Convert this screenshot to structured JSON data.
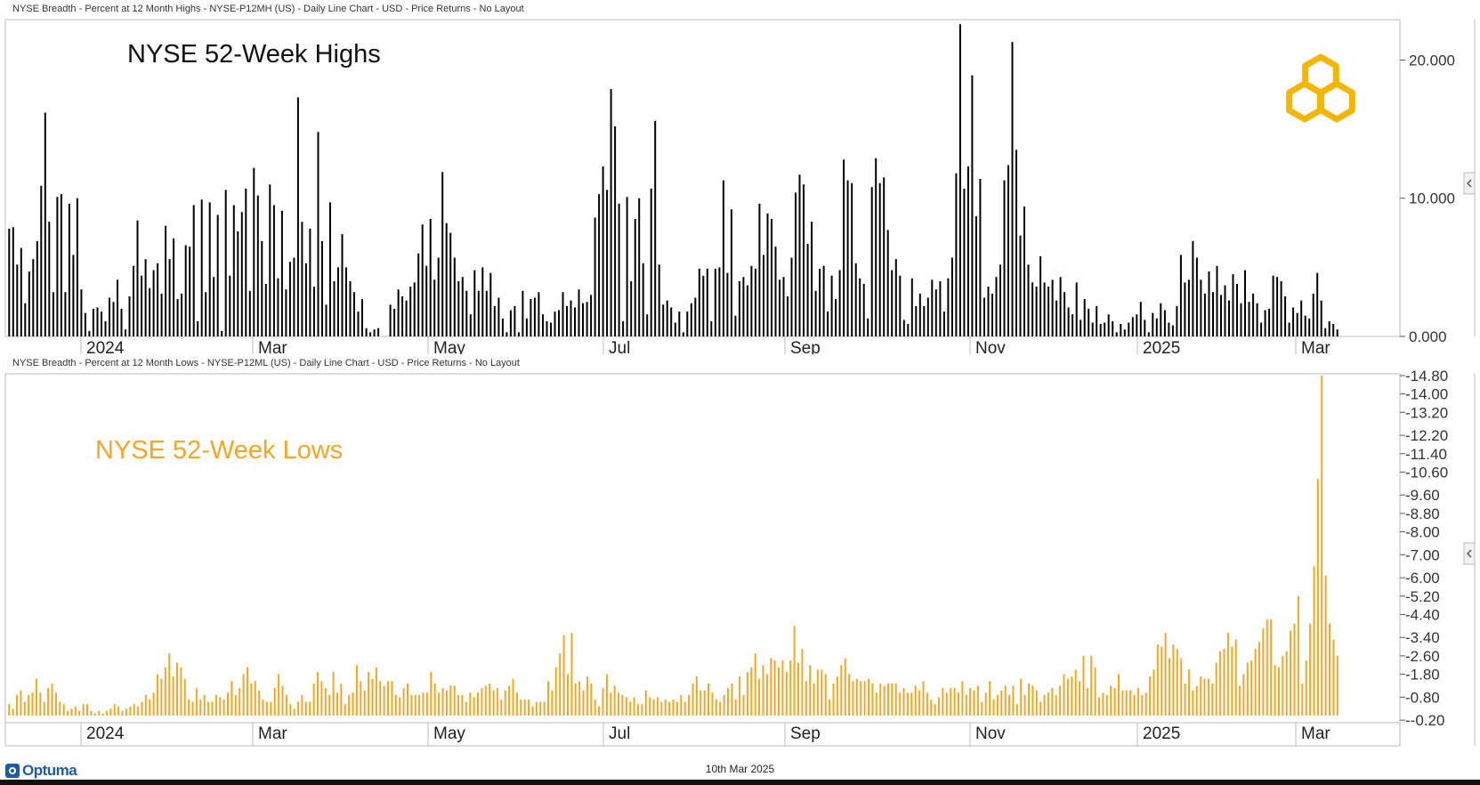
{
  "headers": {
    "top": "NYSE Breadth - Percent at 12 Month Highs - NYSE-P12MH (US) - Daily Line Chart - USD - Price Returns - No Layout",
    "bottom": "NYSE Breadth - Percent at 12 Month Lows - NYSE-P12ML (US) - Daily Line Chart - USD - Price Returns - No Layout"
  },
  "footer": {
    "brand": "Optuma",
    "date": "10th Mar 2025"
  },
  "colors": {
    "highs": "#000000",
    "lows": "#f5a623",
    "logo": "#f2b705",
    "title_lows": "#f5a623"
  },
  "x_axis_labels": [
    "2024",
    "Mar",
    "May",
    "Jul",
    "Sep",
    "Nov",
    "2025",
    "Mar"
  ],
  "chart_data": [
    {
      "type": "bar",
      "title": "NYSE 52-Week Highs",
      "ylim": [
        0,
        22.8
      ],
      "yticks": [
        "20.000",
        "10.000",
        "0.000"
      ],
      "x_labels": [
        "2024",
        "Mar",
        "May",
        "Jul",
        "Sep",
        "Nov",
        "2025",
        "Mar"
      ],
      "values": [
        7.8,
        7.9,
        5.2,
        6.4,
        2.4,
        4.7,
        5.6,
        6.9,
        10.9,
        16.2,
        8.3,
        3.2,
        10.1,
        10.3,
        3.2,
        9.6,
        5.9,
        10.0,
        3.4,
        1.7,
        0.4,
        2.0,
        2.1,
        1.8,
        1.1,
        2.8,
        2.5,
        4.1,
        2.0,
        0.5,
        2.9,
        5.1,
        8.4,
        4.4,
        5.6,
        3.5,
        4.8,
        5.3,
        3.1,
        8.0,
        5.6,
        7.1,
        2.7,
        3.1,
        6.6,
        6.5,
        9.5,
        1.1,
        9.9,
        3.2,
        9.7,
        4.3,
        8.8,
        0.4,
        10.6,
        4.4,
        9.5,
        7.6,
        9.0,
        10.7,
        3.3,
        12.2,
        10.2,
        6.9,
        3.8,
        11.0,
        9.5,
        4.2,
        9.1,
        3.4,
        5.4,
        5.7,
        17.3,
        8.3,
        5.3,
        7.8,
        3.6,
        14.8,
        6.9,
        2.3,
        9.7,
        4.0,
        5.0,
        7.4,
        5.0,
        4.0,
        3.2,
        1.8,
        2.7,
        0.6,
        0.3,
        0.5,
        0.6,
        0.0,
        0.0,
        2.3,
        2.0,
        3.4,
        2.9,
        2.6,
        3.6,
        3.9,
        6.0,
        8.1,
        5.1,
        8.5,
        4.1,
        5.7,
        11.9,
        8.2,
        7.5,
        5.7,
        4.0,
        4.3,
        3.3,
        1.6,
        4.8,
        3.3,
        5.0,
        3.3,
        4.6,
        2.2,
        2.8,
        1.3,
        0.3,
        1.9,
        2.2,
        0.3,
        3.3,
        1.3,
        2.7,
        2.8,
        3.2,
        1.6,
        1.1,
        1.0,
        1.8,
        1.9,
        3.2,
        2.2,
        2.6,
        2.1,
        3.4,
        2.4,
        2.5,
        3.0,
        8.6,
        10.3,
        12.3,
        10.6,
        17.9,
        15.2,
        9.6,
        1.1,
        10.1,
        4.0,
        8.5,
        10.0,
        5.3,
        1.6,
        10.7,
        15.6,
        5.2,
        2.3,
        2.6,
        2.1,
        1.0,
        1.8,
        0.3,
        1.8,
        2.4,
        2.8,
        4.9,
        4.4,
        4.9,
        1.1,
        4.9,
        5.0,
        11.3,
        4.6,
        9.2,
        1.5,
        4.0,
        4.3,
        3.7,
        5.1,
        4.9,
        9.6,
        5.9,
        8.9,
        8.5,
        6.5,
        4.1,
        4.3,
        2.9,
        5.7,
        10.4,
        11.7,
        11.0,
        6.7,
        8.3,
        3.3,
        4.9,
        5.1,
        1.8,
        4.4,
        2.7,
        4.8,
        12.8,
        11.3,
        11.1,
        5.3,
        4.2,
        3.8,
        1.3,
        10.8,
        12.9,
        11.1,
        11.5,
        7.7,
        4.8,
        5.6,
        4.4,
        1.2,
        0.9,
        4.2,
        2.2,
        3.1,
        2.2,
        2.8,
        4.1,
        3.4,
        4.0,
        1.8,
        4.2,
        5.7,
        11.8,
        22.6,
        10.7,
        12.3,
        18.9,
        8.7,
        11.4,
        2.8,
        3.6,
        3.1,
        4.3,
        5.2,
        11.3,
        12.4,
        21.3,
        13.5,
        7.3,
        9.4,
        5.2,
        3.9,
        3.6,
        5.8,
        3.9,
        3.6,
        4.1,
        2.6,
        4.3,
        3.2,
        2.1,
        1.6,
        3.9,
        1.2,
        2.7,
        2.0,
        1.0,
        2.2,
        0.9,
        1.0,
        1.6,
        1.1,
        0.3,
        0.9,
        0.5,
        1.0,
        1.4,
        1.6,
        2.5,
        1.2,
        0.3,
        1.7,
        1.3,
        2.4,
        1.9,
        1.0,
        0.8,
        2.2,
        5.9,
        3.9,
        4.1,
        6.9,
        5.7,
        4.1,
        3.1,
        4.7,
        3.2,
        5.1,
        3.0,
        3.7,
        2.6,
        4.5,
        3.8,
        2.4,
        4.8,
        2.5,
        3.1,
        2.4,
        1.0,
        1.9,
        2.0,
        4.4,
        4.3,
        4.0,
        2.9,
        1.0,
        2.1,
        1.7,
        2.6,
        1.5,
        1.3,
        3.1,
        4.6,
        2.6,
        0.6,
        1.1,
        0.9,
        0.5
      ]
    },
    {
      "type": "bar",
      "title": "NYSE 52-Week Lows",
      "ylim": [
        0.0,
        14.8
      ],
      "yticks": [
        "14.80",
        "14.00",
        "13.20",
        "12.20",
        "11.40",
        "10.60",
        "9.60",
        "8.80",
        "8.00",
        "7.00",
        "6.00",
        "5.20",
        "4.40",
        "3.40",
        "2.60",
        "1.80",
        "0.80",
        "-0.20"
      ],
      "x_labels": [
        "2024",
        "Mar",
        "May",
        "Jul",
        "Sep",
        "Nov",
        "2025",
        "Mar"
      ],
      "values": [
        0.5,
        0.3,
        0.9,
        1.1,
        0.6,
        0.9,
        1.0,
        1.6,
        1.0,
        0.6,
        1.2,
        1.4,
        1.0,
        0.6,
        0.5,
        0.2,
        0.3,
        0.4,
        0.2,
        0.5,
        0.5,
        0.2,
        0.1,
        0.2,
        0.1,
        0.2,
        0.3,
        0.5,
        0.4,
        0.2,
        0.3,
        0.4,
        0.5,
        0.4,
        0.6,
        0.9,
        0.7,
        1.0,
        1.8,
        1.6,
        2.1,
        2.7,
        1.7,
        2.3,
        2.1,
        1.6,
        0.7,
        0.6,
        1.2,
        0.7,
        0.9,
        0.6,
        0.6,
        0.9,
        0.8,
        0.7,
        1.0,
        1.5,
        0.9,
        1.2,
        1.8,
        2.1,
        1.4,
        1.5,
        1.1,
        0.7,
        0.6,
        0.6,
        1.2,
        1.8,
        1.3,
        0.9,
        0.5,
        0.3,
        0.6,
        0.9,
        0.6,
        0.6,
        1.4,
        1.9,
        1.5,
        1.2,
        0.9,
        1.9,
        1.0,
        1.4,
        0.5,
        0.9,
        1.0,
        2.2,
        1.5,
        1.1,
        1.9,
        1.6,
        2.1,
        1.5,
        1.3,
        1.5,
        1.5,
        0.9,
        0.8,
        1.2,
        1.4,
        0.9,
        0.9,
        0.9,
        1.0,
        1.0,
        1.9,
        1.4,
        1.0,
        1.2,
        1.1,
        1.3,
        1.3,
        0.9,
        0.9,
        0.6,
        1.0,
        0.8,
        1.0,
        1.2,
        1.3,
        1.4,
        1.1,
        1.2,
        0.7,
        1.1,
        1.3,
        1.6,
        1.0,
        0.7,
        0.7,
        0.7,
        0.4,
        0.6,
        0.6,
        0.6,
        1.5,
        1.1,
        2.1,
        2.7,
        3.5,
        1.8,
        3.6,
        1.4,
        1.5,
        1.1,
        1.7,
        1.4,
        0.7,
        0.4,
        1.2,
        1.8,
        1.0,
        1.3,
        1.0,
        0.9,
        0.8,
        0.6,
        0.8,
        0.5,
        0.5,
        1.1,
        0.8,
        0.7,
        0.8,
        0.6,
        0.7,
        0.6,
        0.7,
        0.6,
        0.9,
        0.6,
        0.9,
        1.4,
        1.7,
        1.1,
        1.1,
        1.4,
        1.0,
        0.7,
        0.6,
        0.9,
        1.2,
        1.4,
        0.7,
        1.7,
        0.9,
        1.9,
        2.1,
        2.7,
        1.6,
        2.2,
        1.8,
        2.5,
        2.4,
        2.1,
        2.4,
        1.9,
        2.4,
        3.9,
        2.3,
        2.9,
        1.5,
        2.2,
        1.4,
        2.0,
        2.0,
        1.8,
        0.7,
        1.4,
        1.7,
        2.2,
        2.5,
        1.8,
        1.5,
        1.6,
        1.5,
        1.5,
        1.6,
        1.4,
        1.0,
        1.4,
        1.3,
        1.4,
        1.4,
        1.4,
        1.0,
        1.2,
        1.0,
        1.0,
        1.3,
        1.1,
        1.5,
        1.0,
        0.7,
        0.5,
        0.8,
        1.2,
        1.0,
        1.2,
        1.2,
        1.0,
        1.5,
        0.9,
        1.2,
        1.1,
        1.3,
        0.6,
        1.0,
        1.5,
        0.7,
        0.9,
        1.1,
        1.3,
        0.9,
        1.3,
        0.5,
        1.6,
        0.9,
        1.4,
        1.3,
        1.1,
        0.6,
        0.9,
        1.0,
        1.2,
        0.9,
        1.3,
        1.8,
        1.6,
        1.7,
        2.0,
        1.5,
        2.6,
        1.2,
        2.6,
        2.1,
        0.8,
        1.0,
        0.9,
        1.3,
        1.2,
        1.8,
        1.1,
        1.1,
        1.1,
        0.9,
        1.2,
        0.9,
        1.0,
        1.7,
        2.0,
        3.1,
        3.0,
        3.6,
        2.5,
        3.1,
        2.9,
        2.5,
        1.4,
        2.0,
        1.1,
        1.3,
        1.7,
        1.6,
        1.6,
        1.4,
        2.3,
        2.8,
        2.9,
        3.6,
        3.0,
        3.3,
        1.3,
        1.8,
        2.3,
        2.4,
        2.9,
        3.2,
        3.8,
        4.2,
        4.2,
        2.2,
        2.1,
        2.6,
        2.8,
        3.7,
        4.0,
        5.2,
        1.4,
        2.4,
        4.0,
        6.5,
        10.3,
        14.8,
        6.1,
        4.0,
        3.3,
        2.6
      ]
    }
  ]
}
